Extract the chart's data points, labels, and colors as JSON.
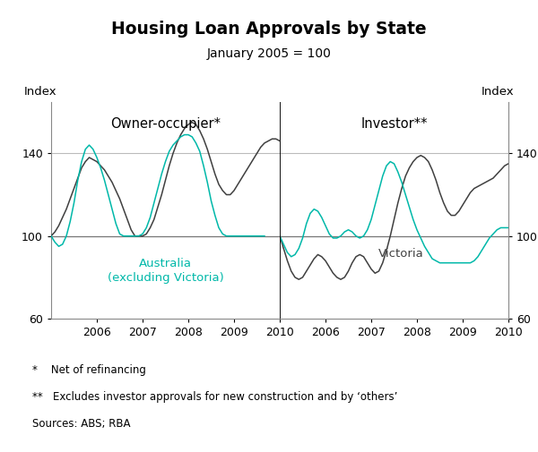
{
  "title": "Housing Loan Approvals by State",
  "subtitle": "January 2005 = 100",
  "ylabel_left": "Index",
  "ylabel_right": "Index",
  "panel_left_label": "Owner-occupier*",
  "panel_right_label": "Investor**",
  "label_aus": "Australia\n(excluding Victoria)",
  "label_vic": "Victoria",
  "color_dark": "#404040",
  "color_teal": "#00B8A9",
  "ylim": [
    60,
    165
  ],
  "yticks": [
    60,
    100,
    140
  ],
  "footnote1": "*    Net of refinancing",
  "footnote2": "**   Excludes investor approvals for new construction and by ‘others’",
  "footnote3": "Sources: ABS; RBA"
}
